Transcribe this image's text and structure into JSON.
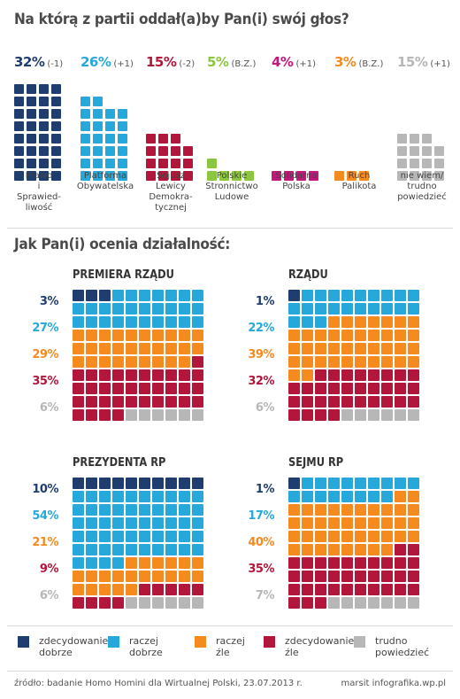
{
  "title1": "Na którą z partii oddał(a)by Pan(i) swój głos?",
  "title2": "Jak Pan(i) ocenia działalność:",
  "colors": {
    "navy": "#1f3d6e",
    "cyan": "#27a8db",
    "crimson": "#b2163a",
    "green": "#8cc63f",
    "magenta": "#c2187b",
    "orange": "#f58a1f",
    "gray": "#b7b7b7",
    "rating": [
      "#1f3d6e",
      "#27a8db",
      "#f58a1f",
      "#b2163a",
      "#b7b7b7"
    ]
  },
  "chart_data": [
    {
      "type": "bar",
      "title": "Na którą z partii oddał(a)by Pan(i) swój głos?",
      "categories": [
        "Prawo i Sprawiedliwość",
        "Platforma Obywatelska",
        "Sojusz Lewicy Demokratycznej",
        "Polskie Stronnictwo Ludowe",
        "Solidarna Polska",
        "Ruch Palikota",
        "nie wiem/ trudno powiedzieć"
      ],
      "values": [
        32,
        26,
        15,
        5,
        4,
        3,
        15
      ],
      "changes": [
        "(-1)",
        "(+1)",
        "(-2)",
        "(B.Z.)",
        "(+1)",
        "(B.Z.)",
        "(+1)"
      ],
      "unit": "%"
    },
    {
      "type": "bar",
      "title": "Jak Pan(i) ocenia działalność:",
      "categories": [
        "zdecydowanie dobrze",
        "raczej dobrze",
        "raczej źle",
        "zdecydowanie źle",
        "trudno powiedzieć"
      ],
      "series": [
        {
          "name": "PREMIERA RZĄDU",
          "values": [
            3,
            27,
            29,
            35,
            6
          ]
        },
        {
          "name": "RZĄDU",
          "values": [
            1,
            22,
            39,
            32,
            6
          ]
        },
        {
          "name": "PREZYDENTA RP",
          "values": [
            10,
            54,
            21,
            9,
            6
          ]
        },
        {
          "name": "SEJMU RP",
          "values": [
            1,
            17,
            40,
            35,
            7
          ]
        }
      ],
      "unit": "%"
    }
  ],
  "parties": [
    {
      "pct": "32%",
      "chg": "(-1)",
      "label": [
        "Prawo",
        "i",
        "Sprawied-",
        "liwość"
      ],
      "value": 32,
      "color": "#1f3d6e"
    },
    {
      "pct": "26%",
      "chg": "(+1)",
      "label": [
        "Platforma",
        "Obywatelska"
      ],
      "value": 26,
      "color": "#27a8db"
    },
    {
      "pct": "15%",
      "chg": "(-2)",
      "label": [
        "Sojusz",
        "Lewicy",
        "Demokra-",
        "tycznej"
      ],
      "value": 15,
      "color": "#b2163a"
    },
    {
      "pct": "5%",
      "chg": "(B.Z.)",
      "label": [
        "Polskie",
        "Stronnictwo",
        "Ludowe"
      ],
      "value": 5,
      "color": "#8cc63f"
    },
    {
      "pct": "4%",
      "chg": "(+1)",
      "label": [
        "Solidarna",
        "Polska"
      ],
      "value": 4,
      "color": "#c2187b"
    },
    {
      "pct": "3%",
      "chg": "(B.Z.)",
      "label": [
        "Ruch",
        "Palikota"
      ],
      "value": 3,
      "color": "#f58a1f"
    },
    {
      "pct": "15%",
      "chg": "(+1)",
      "label": [
        "nie wiem/",
        "trudno",
        "powiedzieć"
      ],
      "value": 15,
      "color": "#b7b7b7"
    }
  ],
  "panels": [
    {
      "title": "PREMIERA RZĄDU",
      "labels": [
        "3%",
        "27%",
        "29%",
        "35%",
        "6%"
      ],
      "values": [
        3,
        27,
        29,
        35,
        6
      ]
    },
    {
      "title": "RZĄDU",
      "labels": [
        "1%",
        "22%",
        "39%",
        "32%",
        "6%"
      ],
      "values": [
        1,
        22,
        39,
        32,
        6
      ]
    },
    {
      "title": "PREZYDENTA RP",
      "labels": [
        "10%",
        "54%",
        "21%",
        "9%",
        "6%"
      ],
      "values": [
        10,
        54,
        21,
        9,
        6
      ]
    },
    {
      "title": "SEJMU RP",
      "labels": [
        "1%",
        "17%",
        "40%",
        "35%",
        "7%"
      ],
      "values": [
        1,
        17,
        40,
        35,
        7
      ]
    }
  ],
  "legend": [
    {
      "line1": "zdecydowanie",
      "line2": "dobrze",
      "color": "#1f3d6e"
    },
    {
      "line1": "raczej",
      "line2": "dobrze",
      "color": "#27a8db"
    },
    {
      "line1": "raczej",
      "line2": "źle",
      "color": "#f58a1f"
    },
    {
      "line1": "zdecydowanie",
      "line2": "źle",
      "color": "#b2163a"
    },
    {
      "line1": "trudno",
      "line2": "powiedzieć",
      "color": "#b7b7b7"
    }
  ],
  "footer": {
    "source": "źródło: badanie Homo Homini dla Wirtualnej Polski, 23.07.2013 r.",
    "credit": "marsit infografika.wp.pl"
  }
}
